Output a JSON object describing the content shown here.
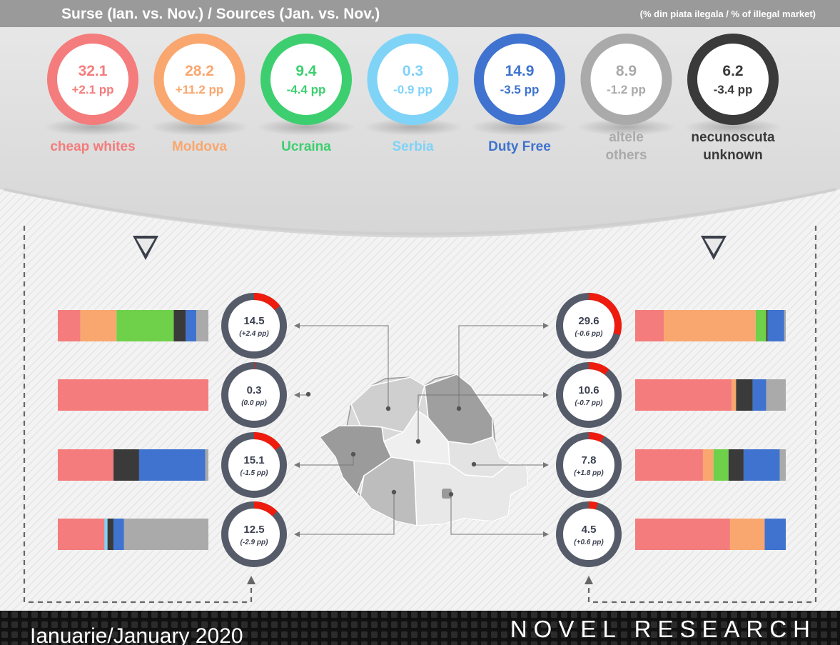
{
  "header": {
    "title": "Surse (Ian. vs. Nov.) / Sources (Jan. vs. Nov.)",
    "note": "(% din piata ilegala / % of illegal market)"
  },
  "footer": {
    "date": "Ianuarie/January 2020",
    "brand": "NOVEL RESEARCH"
  },
  "chart_data": [
    {
      "type": "pie",
      "sources": [
        {
          "label": "cheap whites",
          "value": 32.1,
          "delta": "+2.1 pp",
          "color": "#f47c7c"
        },
        {
          "label": "Moldova",
          "value": 28.2,
          "delta": "+11.2 pp",
          "color": "#f9a76f"
        },
        {
          "label": "Ucraina",
          "value": 9.4,
          "delta": "-4.4 pp",
          "color": "#3dcf6f"
        },
        {
          "label": "Serbia",
          "value": 0.3,
          "delta": "-0.9 pp",
          "color": "#7fd3f7"
        },
        {
          "label": "Duty Free",
          "value": 14.9,
          "delta": "-3.5 pp",
          "color": "#3f73cf"
        },
        {
          "label": "altele\nothers",
          "value": 8.9,
          "delta": "-1.2 pp",
          "color": "#aaaaaa"
        },
        {
          "label": "necunoscuta\nunknown",
          "value": 6.2,
          "delta": "-3.4 pp",
          "color": "#3a3a3a"
        }
      ]
    },
    {
      "type": "bar",
      "stacked": true,
      "segment_colors": [
        "#f47c7c",
        "#f9a76f",
        "#6fd04a",
        "#7fd3f7",
        "#3a3a3a",
        "#3f73cf",
        "#aaaaaa"
      ],
      "regions": [
        {
          "side": "left",
          "value": 14.5,
          "delta": "(+2.4 pp)",
          "segments": [
            15,
            24,
            38,
            0,
            8,
            7,
            8
          ]
        },
        {
          "side": "left",
          "value": 0.3,
          "delta": "(0.0 pp)",
          "segments": [
            100,
            0,
            0,
            0,
            0,
            0,
            0
          ]
        },
        {
          "side": "left",
          "value": 15.1,
          "delta": "(-1.5 pp)",
          "segments": [
            37,
            0,
            0,
            0,
            17,
            44,
            2
          ]
        },
        {
          "side": "left",
          "value": 12.5,
          "delta": "(-2.9 pp)",
          "segments": [
            31,
            0,
            0,
            2,
            4,
            7,
            56
          ]
        },
        {
          "side": "right",
          "value": 29.6,
          "delta": "(-0.6 pp)",
          "segments": [
            19,
            61,
            7,
            0,
            1,
            11,
            1
          ]
        },
        {
          "side": "right",
          "value": 10.6,
          "delta": "(-0.7 pp)",
          "segments": [
            64,
            3,
            0,
            0,
            11,
            9,
            13
          ]
        },
        {
          "side": "right",
          "value": 7.8,
          "delta": "(+1.8 pp)",
          "segments": [
            45,
            7,
            10,
            0,
            10,
            24,
            4
          ]
        },
        {
          "side": "right",
          "value": 4.5,
          "delta": "(+0.6 pp)",
          "segments": [
            63,
            23,
            0,
            0,
            0,
            14,
            0
          ]
        }
      ]
    }
  ]
}
